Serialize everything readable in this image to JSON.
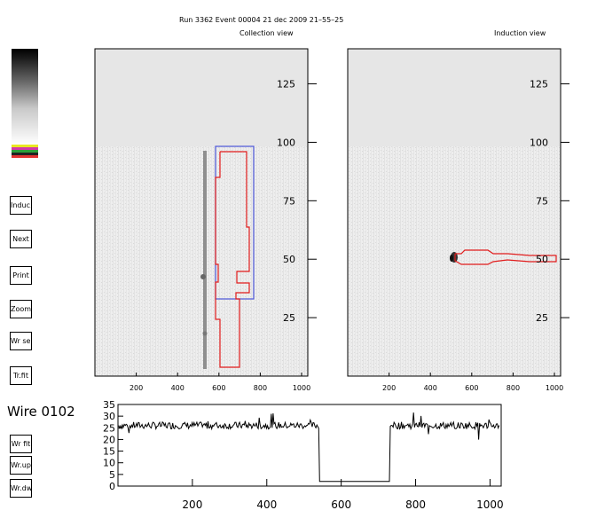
{
  "header": {
    "title": "Run 3362  Event 00004   21 dec 2009   21–55–25",
    "collection_label": "Collection view",
    "induction_label": "Induction view"
  },
  "buttons": {
    "induc": "Induc.",
    "next": "Next",
    "print": "Print",
    "zoom": "Zoom",
    "wr_sel": "Wr sel",
    "tr_fit": "Tr.fit",
    "wr_fit": "Wr fit",
    "wr_up": "Wr.up",
    "wr_dw": "Wr.dw"
  },
  "wire_label": "Wire 0102",
  "palette": {
    "track_outline": "#e11c1c",
    "selection_box": "#4b55d8",
    "upper_region": "#e6e6e6",
    "noise_region": "#ececec"
  },
  "colorbar_stripes": [
    "#e8e821",
    "#d43aa8",
    "#2e9e3a",
    "#222222",
    "#e33232"
  ],
  "collection_view": {
    "x_ticks": [
      "200",
      "400",
      "600",
      "800",
      "1000"
    ],
    "y_ticks": [
      "125",
      "100",
      "75",
      "50",
      "25"
    ],
    "x_range": [
      0,
      1030
    ],
    "y_range": [
      0,
      140
    ]
  },
  "induction_view": {
    "x_ticks": [
      "200",
      "400",
      "600",
      "800",
      "1000"
    ],
    "y_ticks": [
      "125",
      "100",
      "75",
      "50",
      "25"
    ],
    "x_range": [
      0,
      1030
    ],
    "y_range": [
      0,
      140
    ]
  },
  "wire_plot": {
    "x_ticks": [
      "200",
      "400",
      "600",
      "800",
      "1000"
    ],
    "y_ticks": [
      "35",
      "30",
      "25",
      "20",
      "15",
      "10",
      "5",
      "0"
    ],
    "x_range": [
      0,
      1030
    ],
    "y_range": [
      0,
      35
    ]
  }
}
